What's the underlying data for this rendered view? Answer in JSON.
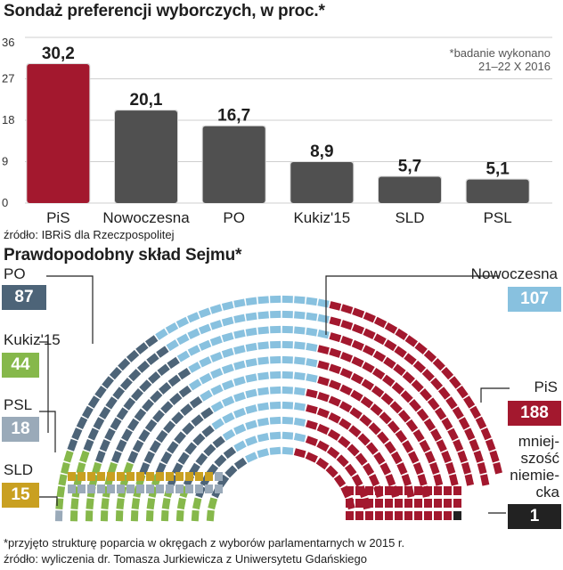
{
  "title": "Sondaż preferencji wyborczych, w proc.*",
  "note_lines": [
    "*badanie wykonano",
    "21–22 X 2016"
  ],
  "source_poll": "źródło: IBRiS dla Rzeczpospolitej",
  "subtitle": "Prawdopodobny skład Sejmu*",
  "footnote": "*przyjęto strukturę poparcia w okręgach z wyborów parlamentarnych w 2015 r.",
  "source_seats": "źródło: wyliczenia dr. Tomasza Jurkiewicza z Uniwersytetu Gdańskiego",
  "colors": {
    "pis": "#a3182e",
    "gray_bar": "#505050",
    "po": "#4d6478",
    "kukiz": "#86b84b",
    "psl": "#9aaab9",
    "sld": "#c9a021",
    "nowoczesna": "#88c1df",
    "mn": "#222222"
  },
  "chart_data": [
    {
      "type": "bar",
      "categories": [
        "PiS",
        "Nowoczesna",
        "PO",
        "Kukiz'15",
        "SLD",
        "PSL"
      ],
      "values": [
        30.2,
        20.1,
        16.7,
        8.9,
        5.7,
        5.1
      ],
      "value_labels": [
        "30,2",
        "20,1",
        "16,7",
        "8,9",
        "5,7",
        "5,1"
      ],
      "ylim": [
        0,
        36
      ],
      "yticks": [
        0,
        9,
        18,
        27,
        36
      ],
      "grid": true,
      "highlight": "PiS"
    },
    {
      "type": "parliament",
      "total_seats": 460,
      "parties": [
        {
          "name": "PO",
          "seats": 87,
          "color_key": "po"
        },
        {
          "name": "Kukiz'15",
          "seats": 44,
          "color_key": "kukiz"
        },
        {
          "name": "PSL",
          "seats": 18,
          "color_key": "psl"
        },
        {
          "name": "SLD",
          "seats": 15,
          "color_key": "sld"
        },
        {
          "name": "Nowoczesna",
          "seats": 107,
          "color_key": "nowoczesna"
        },
        {
          "name": "PiS",
          "seats": 188,
          "color_key": "pis"
        },
        {
          "name": "mniejszość niemiecka",
          "seats": 1,
          "color_key": "mn"
        }
      ]
    }
  ],
  "seat_labels": {
    "po": {
      "name": "PO",
      "seats": "87"
    },
    "kukiz": {
      "name": "Kukiz'15",
      "seats": "44"
    },
    "psl": {
      "name": "PSL",
      "seats": "18"
    },
    "sld": {
      "name": "SLD",
      "seats": "15"
    },
    "nowoczesna": {
      "name": "Nowoczesna",
      "seats": "107"
    },
    "pis": {
      "name": "PiS",
      "seats": "188"
    },
    "mn": {
      "name_lines": [
        "mniej-",
        "szość",
        "niemie-",
        "cka"
      ],
      "seats": "1"
    }
  }
}
